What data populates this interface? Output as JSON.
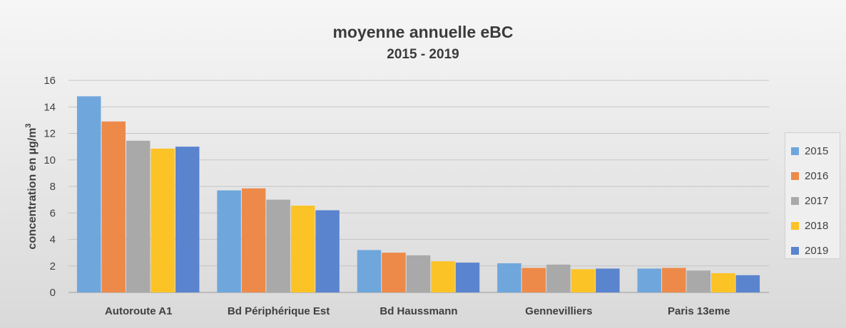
{
  "chart_data": {
    "type": "bar",
    "title": "moyenne annuelle eBC",
    "subtitle": "2015 - 2019",
    "ylabel": "concentration en µg/m",
    "ylabel_superscript": "3",
    "xlabel": "",
    "ylim": [
      0,
      16
    ],
    "yticks": [
      0,
      2,
      4,
      6,
      8,
      10,
      12,
      14,
      16
    ],
    "grid": true,
    "legend_position": "right",
    "categories": [
      "Autoroute A1",
      "Bd Périphérique Est",
      "Bd Haussmann",
      "Gennevilliers",
      "Paris 13eme"
    ],
    "series": [
      {
        "name": "2015",
        "color": "#6fa7dc",
        "values": [
          14.8,
          7.7,
          3.2,
          2.2,
          1.8
        ]
      },
      {
        "name": "2016",
        "color": "#ed8a4a",
        "values": [
          12.9,
          7.85,
          3.0,
          1.85,
          1.85
        ]
      },
      {
        "name": "2017",
        "color": "#a9a9a9",
        "values": [
          11.45,
          7.0,
          2.8,
          2.1,
          1.65
        ]
      },
      {
        "name": "2018",
        "color": "#fcc326",
        "values": [
          10.85,
          6.55,
          2.35,
          1.75,
          1.45
        ]
      },
      {
        "name": "2019",
        "color": "#5b84cf",
        "values": [
          11.0,
          6.2,
          2.25,
          1.8,
          1.3
        ]
      }
    ]
  }
}
